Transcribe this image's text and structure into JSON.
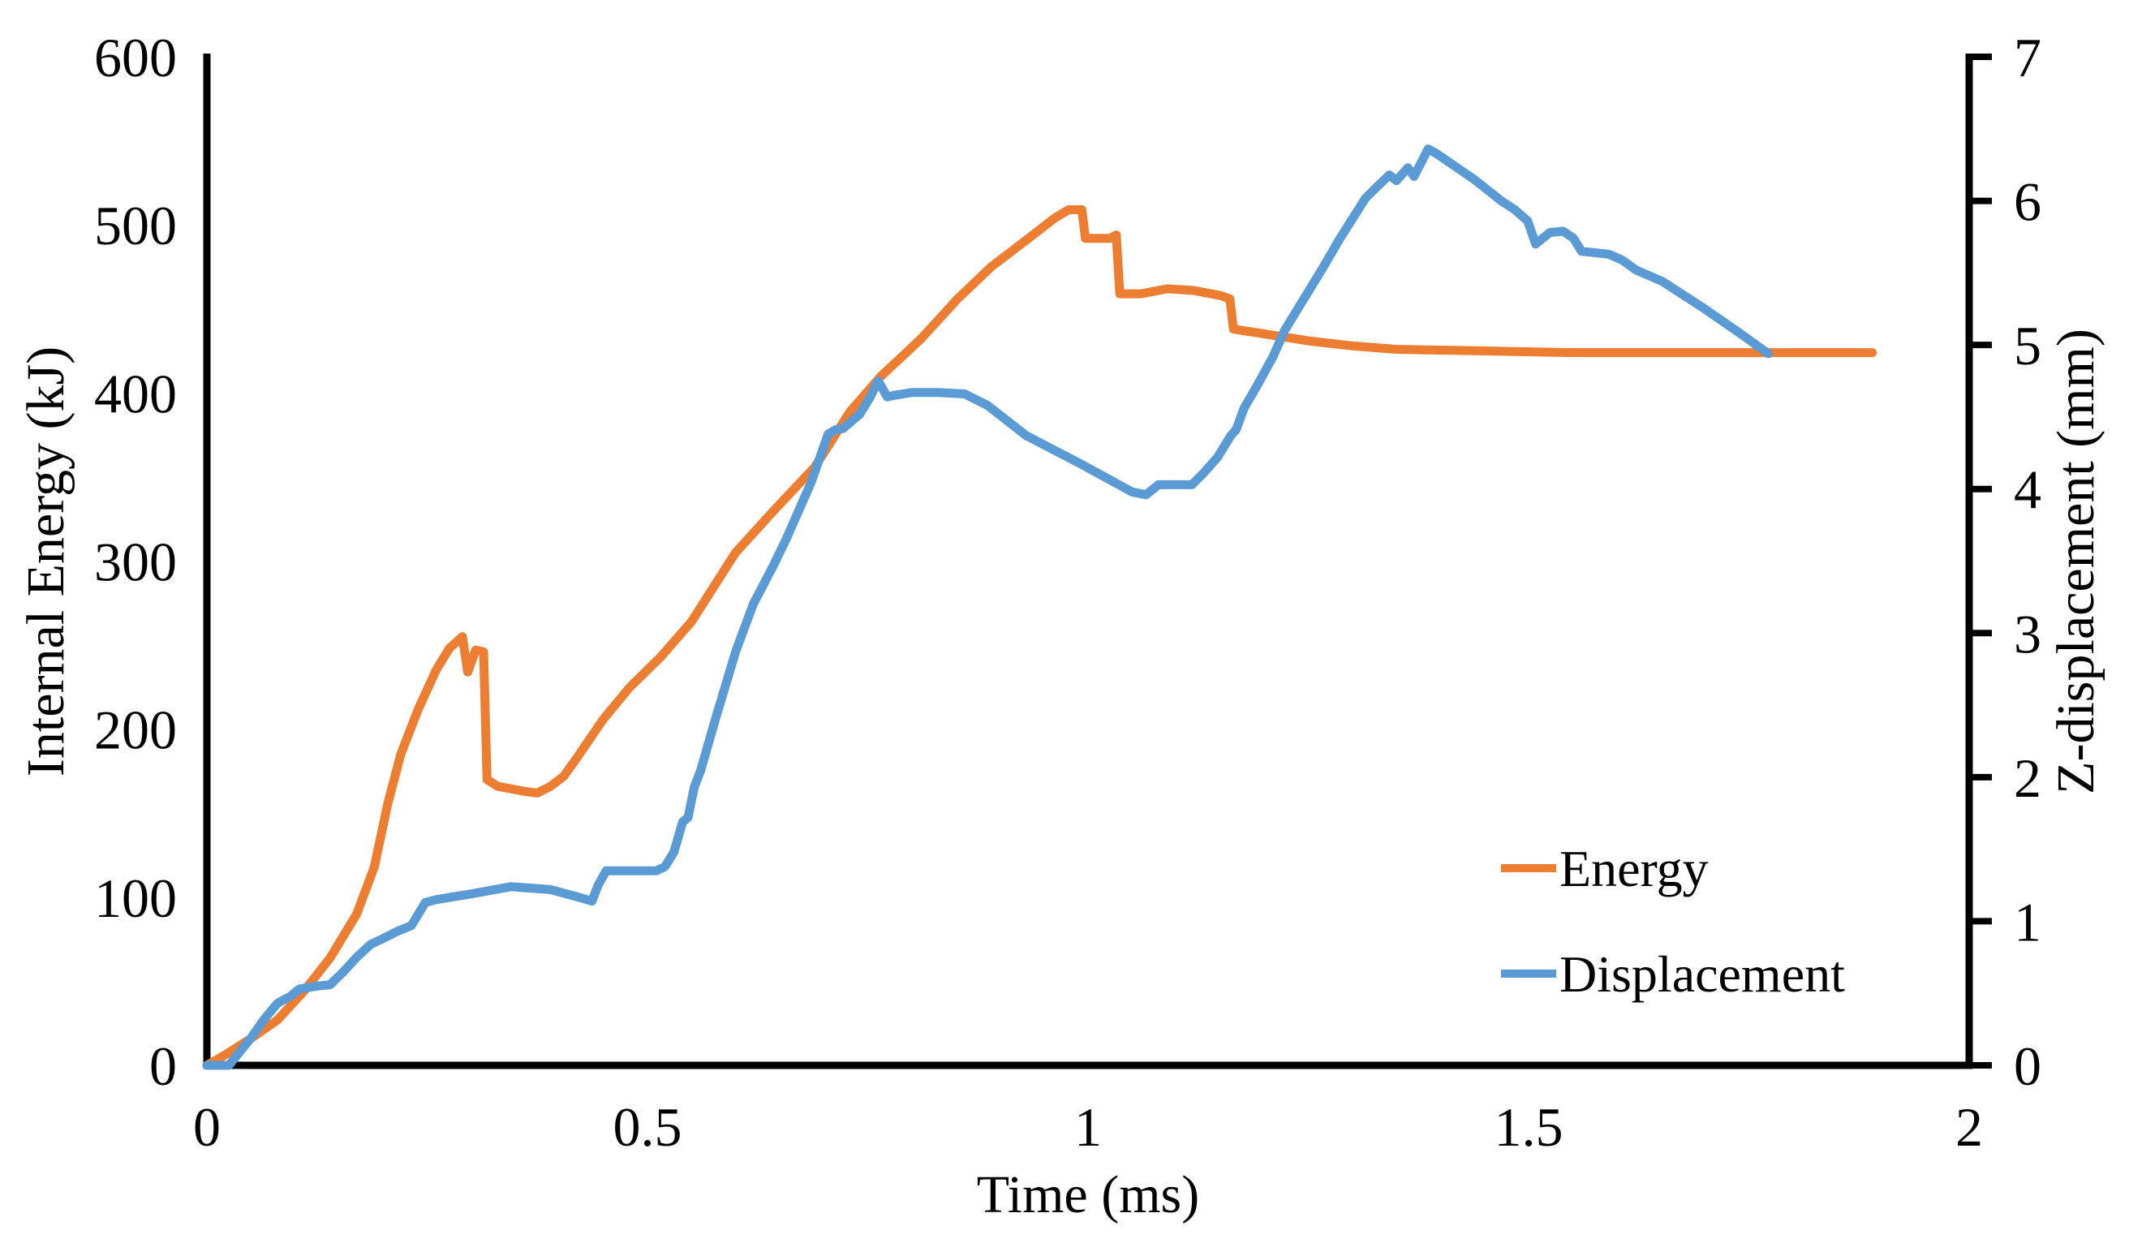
{
  "chart_data": {
    "type": "line",
    "title": "",
    "xlabel": "Time (ms)",
    "ylabel_left": "Internal Energy (kJ)",
    "ylabel_right": "Z-displacement (mm)",
    "xlim": [
      0,
      2
    ],
    "ylim_left": [
      0,
      600
    ],
    "ylim_right": [
      0,
      7
    ],
    "grid": false,
    "x_ticks": [
      0,
      0.5,
      1,
      1.5,
      2
    ],
    "x_tick_labels": [
      "0",
      "0.5",
      "1",
      "1.5",
      "2"
    ],
    "y_left_ticks": [
      0,
      100,
      200,
      300,
      400,
      500,
      600
    ],
    "y_left_tick_labels": [
      "0",
      "100",
      "200",
      "300",
      "400",
      "500",
      "600"
    ],
    "y_right_ticks": [
      0,
      1,
      2,
      3,
      4,
      5,
      6,
      7
    ],
    "y_right_tick_labels": [
      "0",
      "1",
      "2",
      "3",
      "4",
      "5",
      "6",
      "7"
    ],
    "axis_color": "#000000",
    "legend": {
      "position": "inside-lower-right",
      "items": [
        {
          "label": "Energy",
          "color": "#ED7D31"
        },
        {
          "label": "Displacement",
          "color": "#5B9BD5"
        }
      ]
    },
    "series": [
      {
        "name": "Energy",
        "axis": "left",
        "color": "#ED7D31",
        "x": [
          0,
          0.02,
          0.05,
          0.08,
          0.11,
          0.14,
          0.17,
          0.19,
          0.205,
          0.22,
          0.24,
          0.26,
          0.275,
          0.29,
          0.296,
          0.305,
          0.314,
          0.318,
          0.33,
          0.36,
          0.375,
          0.39,
          0.405,
          0.42,
          0.45,
          0.48,
          0.515,
          0.55,
          0.6,
          0.645,
          0.69,
          0.73,
          0.765,
          0.81,
          0.845,
          0.85,
          0.89,
          0.93,
          0.962,
          0.978,
          0.993,
          0.997,
          1.025,
          1.032,
          1.036,
          1.06,
          1.09,
          1.12,
          1.15,
          1.161,
          1.165,
          1.19,
          1.25,
          1.3,
          1.35,
          1.45,
          1.55,
          1.65,
          1.75,
          1.89
        ],
        "y": [
          0,
          6,
          16,
          27,
          44,
          64,
          90,
          118,
          155,
          185,
          212,
          235,
          248,
          255,
          234,
          247,
          246,
          170,
          166,
          163,
          162,
          166,
          172,
          183,
          206,
          225,
          243,
          264,
          305,
          331,
          356,
          389,
          410,
          432,
          452,
          455,
          475,
          491,
          504,
          509,
          509,
          492,
          492,
          494,
          459,
          459,
          462,
          461,
          458,
          456,
          438,
          436,
          431,
          428,
          426,
          425,
          424,
          424,
          424,
          424
        ]
      },
      {
        "name": "Displacement",
        "axis": "right",
        "color": "#5B9BD5",
        "x": [
          0,
          0.025,
          0.05,
          0.065,
          0.08,
          0.095,
          0.105,
          0.125,
          0.14,
          0.155,
          0.17,
          0.186,
          0.2,
          0.216,
          0.232,
          0.24,
          0.248,
          0.26,
          0.3,
          0.345,
          0.39,
          0.42,
          0.437,
          0.444,
          0.453,
          0.47,
          0.51,
          0.52,
          0.53,
          0.54,
          0.546,
          0.553,
          0.56,
          0.577,
          0.6,
          0.62,
          0.643,
          0.658,
          0.686,
          0.705,
          0.713,
          0.722,
          0.741,
          0.752,
          0.762,
          0.772,
          0.78,
          0.8,
          0.83,
          0.86,
          0.886,
          0.93,
          0.99,
          1.02,
          1.05,
          1.066,
          1.08,
          1.118,
          1.131,
          1.147,
          1.162,
          1.168,
          1.177,
          1.193,
          1.21,
          1.223,
          1.24,
          1.266,
          1.285,
          1.315,
          1.33,
          1.342,
          1.35,
          1.363,
          1.37,
          1.386,
          1.395,
          1.407,
          1.438,
          1.469,
          1.484,
          1.499,
          1.508,
          1.524,
          1.539,
          1.551,
          1.56,
          1.591,
          1.606,
          1.622,
          1.652,
          1.7,
          1.74,
          1.772
        ],
        "y": [
          0,
          0,
          0.19,
          0.32,
          0.43,
          0.48,
          0.53,
          0.55,
          0.56,
          0.65,
          0.75,
          0.84,
          0.88,
          0.93,
          0.97,
          1.05,
          1.13,
          1.15,
          1.19,
          1.24,
          1.22,
          1.17,
          1.14,
          1.25,
          1.35,
          1.35,
          1.35,
          1.38,
          1.48,
          1.69,
          1.72,
          1.93,
          2.04,
          2.4,
          2.87,
          3.2,
          3.47,
          3.66,
          4.05,
          4.38,
          4.41,
          4.42,
          4.52,
          4.63,
          4.75,
          4.64,
          4.65,
          4.67,
          4.67,
          4.66,
          4.58,
          4.37,
          4.18,
          4.08,
          3.98,
          3.96,
          4.03,
          4.03,
          4.11,
          4.22,
          4.37,
          4.41,
          4.56,
          4.73,
          4.92,
          5.1,
          5.27,
          5.53,
          5.73,
          6.02,
          6.11,
          6.18,
          6.14,
          6.23,
          6.17,
          6.36,
          6.33,
          6.28,
          6.15,
          6.0,
          5.94,
          5.86,
          5.7,
          5.78,
          5.79,
          5.74,
          5.65,
          5.63,
          5.59,
          5.52,
          5.44,
          5.25,
          5.08,
          4.94
        ]
      }
    ]
  }
}
